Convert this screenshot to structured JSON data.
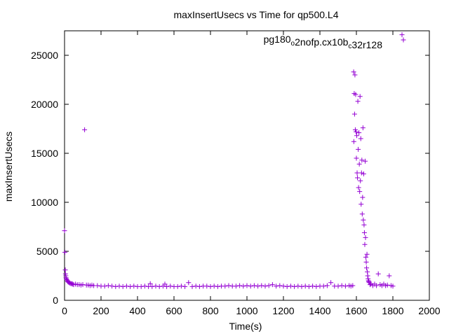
{
  "chart_data": {
    "type": "scatter",
    "title": "maxInsertUsecs vs Time for qp500.L4",
    "xlabel": "Time(s)",
    "ylabel": "maxInsertUsecs",
    "xlim": [
      0,
      2000
    ],
    "ylim": [
      0,
      27500
    ],
    "x_ticks": [
      "0",
      "200",
      "400",
      "600",
      "800",
      "1000",
      "1200",
      "1400",
      "1600",
      "1800",
      "2000"
    ],
    "y_ticks": [
      "0",
      "5000",
      "10000",
      "15000",
      "20000",
      "25000"
    ],
    "grid": false,
    "legend": {
      "placement": "top-right",
      "parts": [
        {
          "text": "pg180",
          "sub": false
        },
        {
          "text": "o",
          "sub": true
        },
        {
          "text": "2nofp.cx10b",
          "sub": false
        },
        {
          "text": "c",
          "sub": true
        },
        {
          "text": "32r128",
          "sub": false
        }
      ]
    },
    "marker": "+",
    "color": "#9400d3",
    "series": [
      {
        "name": "pg180o2nofp.cx10bc32r128",
        "points": [
          [
            0,
            7100
          ],
          [
            2,
            4900
          ],
          [
            4,
            3100
          ],
          [
            5,
            2700
          ],
          [
            7,
            2500
          ],
          [
            8,
            2300
          ],
          [
            10,
            2200
          ],
          [
            12,
            2100
          ],
          [
            15,
            2000
          ],
          [
            18,
            1900
          ],
          [
            22,
            1850
          ],
          [
            26,
            1800
          ],
          [
            30,
            1750
          ],
          [
            35,
            1700
          ],
          [
            40,
            1700
          ],
          [
            45,
            1650
          ],
          [
            50,
            1600
          ],
          [
            60,
            1650
          ],
          [
            70,
            1600
          ],
          [
            80,
            1600
          ],
          [
            90,
            1550
          ],
          [
            100,
            1600
          ],
          [
            110,
            17400
          ],
          [
            120,
            1550
          ],
          [
            130,
            1550
          ],
          [
            140,
            1500
          ],
          [
            150,
            1550
          ],
          [
            160,
            1500
          ],
          [
            180,
            1500
          ],
          [
            200,
            1450
          ],
          [
            220,
            1450
          ],
          [
            240,
            1500
          ],
          [
            260,
            1450
          ],
          [
            280,
            1400
          ],
          [
            300,
            1450
          ],
          [
            320,
            1400
          ],
          [
            340,
            1450
          ],
          [
            360,
            1400
          ],
          [
            380,
            1450
          ],
          [
            400,
            1400
          ],
          [
            420,
            1400
          ],
          [
            440,
            1450
          ],
          [
            460,
            1400
          ],
          [
            470,
            1700
          ],
          [
            480,
            1400
          ],
          [
            500,
            1450
          ],
          [
            520,
            1400
          ],
          [
            540,
            1450
          ],
          [
            550,
            1650
          ],
          [
            560,
            1400
          ],
          [
            580,
            1450
          ],
          [
            600,
            1400
          ],
          [
            620,
            1400
          ],
          [
            640,
            1450
          ],
          [
            660,
            1400
          ],
          [
            680,
            1800
          ],
          [
            700,
            1400
          ],
          [
            720,
            1450
          ],
          [
            740,
            1400
          ],
          [
            760,
            1450
          ],
          [
            780,
            1450
          ],
          [
            800,
            1400
          ],
          [
            820,
            1450
          ],
          [
            840,
            1400
          ],
          [
            860,
            1450
          ],
          [
            880,
            1450
          ],
          [
            900,
            1500
          ],
          [
            920,
            1450
          ],
          [
            940,
            1450
          ],
          [
            960,
            1500
          ],
          [
            980,
            1450
          ],
          [
            1000,
            1500
          ],
          [
            1020,
            1450
          ],
          [
            1040,
            1500
          ],
          [
            1060,
            1450
          ],
          [
            1080,
            1500
          ],
          [
            1100,
            1450
          ],
          [
            1120,
            1500
          ],
          [
            1140,
            1600
          ],
          [
            1160,
            1450
          ],
          [
            1180,
            1500
          ],
          [
            1200,
            1450
          ],
          [
            1220,
            1400
          ],
          [
            1240,
            1450
          ],
          [
            1260,
            1400
          ],
          [
            1280,
            1450
          ],
          [
            1300,
            1400
          ],
          [
            1320,
            1450
          ],
          [
            1340,
            1400
          ],
          [
            1360,
            1450
          ],
          [
            1380,
            1400
          ],
          [
            1400,
            1450
          ],
          [
            1420,
            1450
          ],
          [
            1440,
            1500
          ],
          [
            1460,
            1800
          ],
          [
            1480,
            1450
          ],
          [
            1500,
            1450
          ],
          [
            1520,
            1500
          ],
          [
            1540,
            1450
          ],
          [
            1560,
            1500
          ],
          [
            1570,
            1450
          ],
          [
            1580,
            1500
          ],
          [
            1585,
            23300
          ],
          [
            1586,
            16200
          ],
          [
            1588,
            21100
          ],
          [
            1590,
            19000
          ],
          [
            1592,
            23000
          ],
          [
            1594,
            17400
          ],
          [
            1596,
            21000
          ],
          [
            1598,
            17200
          ],
          [
            1600,
            14500
          ],
          [
            1602,
            16800
          ],
          [
            1604,
            13000
          ],
          [
            1606,
            12500
          ],
          [
            1608,
            20300
          ],
          [
            1610,
            15400
          ],
          [
            1612,
            11500
          ],
          [
            1614,
            17100
          ],
          [
            1616,
            13900
          ],
          [
            1618,
            11100
          ],
          [
            1620,
            20800
          ],
          [
            1622,
            12200
          ],
          [
            1624,
            16500
          ],
          [
            1626,
            9800
          ],
          [
            1628,
            13000
          ],
          [
            1630,
            14300
          ],
          [
            1632,
            8800
          ],
          [
            1634,
            10500
          ],
          [
            1636,
            17600
          ],
          [
            1638,
            8200
          ],
          [
            1640,
            12900
          ],
          [
            1642,
            7700
          ],
          [
            1644,
            6900
          ],
          [
            1646,
            5700
          ],
          [
            1648,
            14200
          ],
          [
            1650,
            6400
          ],
          [
            1652,
            4400
          ],
          [
            1654,
            3900
          ],
          [
            1656,
            3300
          ],
          [
            1658,
            4700
          ],
          [
            1660,
            2900
          ],
          [
            1662,
            2500
          ],
          [
            1664,
            2200
          ],
          [
            1666,
            2000
          ],
          [
            1668,
            1900
          ],
          [
            1670,
            1800
          ],
          [
            1675,
            1600
          ],
          [
            1680,
            1700
          ],
          [
            1690,
            1500
          ],
          [
            1700,
            1650
          ],
          [
            1710,
            1500
          ],
          [
            1720,
            2700
          ],
          [
            1730,
            1600
          ],
          [
            1740,
            1500
          ],
          [
            1750,
            1650
          ],
          [
            1760,
            1500
          ],
          [
            1770,
            1550
          ],
          [
            1780,
            2500
          ],
          [
            1790,
            1500
          ],
          [
            1800,
            1450
          ],
          [
            1850,
            27100
          ]
        ]
      }
    ]
  }
}
